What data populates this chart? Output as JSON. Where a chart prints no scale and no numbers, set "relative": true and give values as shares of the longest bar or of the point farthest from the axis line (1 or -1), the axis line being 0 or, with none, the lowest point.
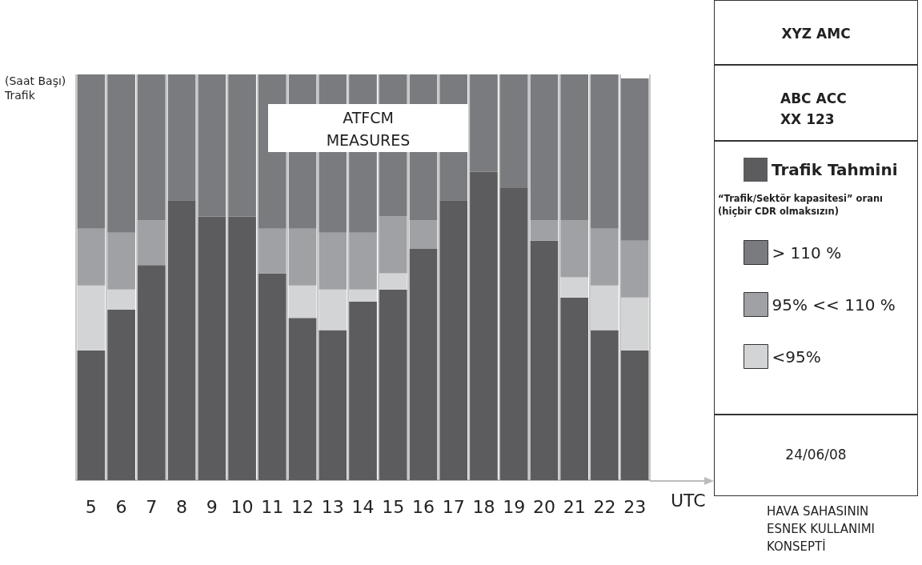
{
  "chart_data": {
    "type": "bar",
    "stacked": true,
    "relative": true,
    "grid": "x",
    "legend": "right",
    "ylabel": "(Saat Başı)\nTrafik",
    "xlabel": "UTC",
    "legend_title": "“Trafik/Sektör kapasitesi” oranı\n(hiçbir CDR olmaksızın)",
    "categories": [
      "5",
      "6",
      "7",
      "8",
      "9",
      "10",
      "11",
      "12",
      "13",
      "14",
      "15",
      "16",
      "17",
      "18",
      "19",
      "20",
      "21",
      "22",
      "23"
    ],
    "series": [
      {
        "name": "Trafik Tahmini",
        "color": "#5c5c5e",
        "values": [
          0.32,
          0.42,
          0.53,
          0.69,
          0.65,
          0.65,
          0.51,
          0.4,
          0.37,
          0.44,
          0.47,
          0.57,
          0.69,
          0.76,
          0.72,
          0.59,
          0.45,
          0.37,
          0.32
        ]
      },
      {
        "name": "<95%",
        "color": "#d3d4d6",
        "values": [
          0.16,
          0.05,
          0,
          0,
          0,
          0,
          0,
          0.08,
          0.1,
          0.03,
          0.04,
          0,
          0,
          0,
          0,
          0,
          0.05,
          0.11,
          0.13
        ]
      },
      {
        "name": "95% << 110 %",
        "color": "#a0a1a5",
        "values": [
          0.14,
          0.14,
          0.11,
          0,
          0,
          0,
          0.11,
          0.14,
          0.14,
          0.14,
          0.14,
          0.07,
          0,
          0,
          0,
          0.05,
          0.14,
          0.14,
          0.14
        ]
      },
      {
        "name": "> 110 %",
        "color": "#7a7b7f",
        "values": [
          0.38,
          0.39,
          0.36,
          0.31,
          0.35,
          0.35,
          0.38,
          0.38,
          0.39,
          0.39,
          0.35,
          0.36,
          0.31,
          0.24,
          0.28,
          0.36,
          0.36,
          0.38,
          0.4
        ]
      }
    ],
    "annotations": [
      "XYZ AMC",
      "ABC ACC\nXX  123",
      "24/06/08",
      "HAVA SAHASININ\nESNEK KULLANIMI\nKONSEPTİ",
      "ATFCM\nMEASURES"
    ]
  }
}
